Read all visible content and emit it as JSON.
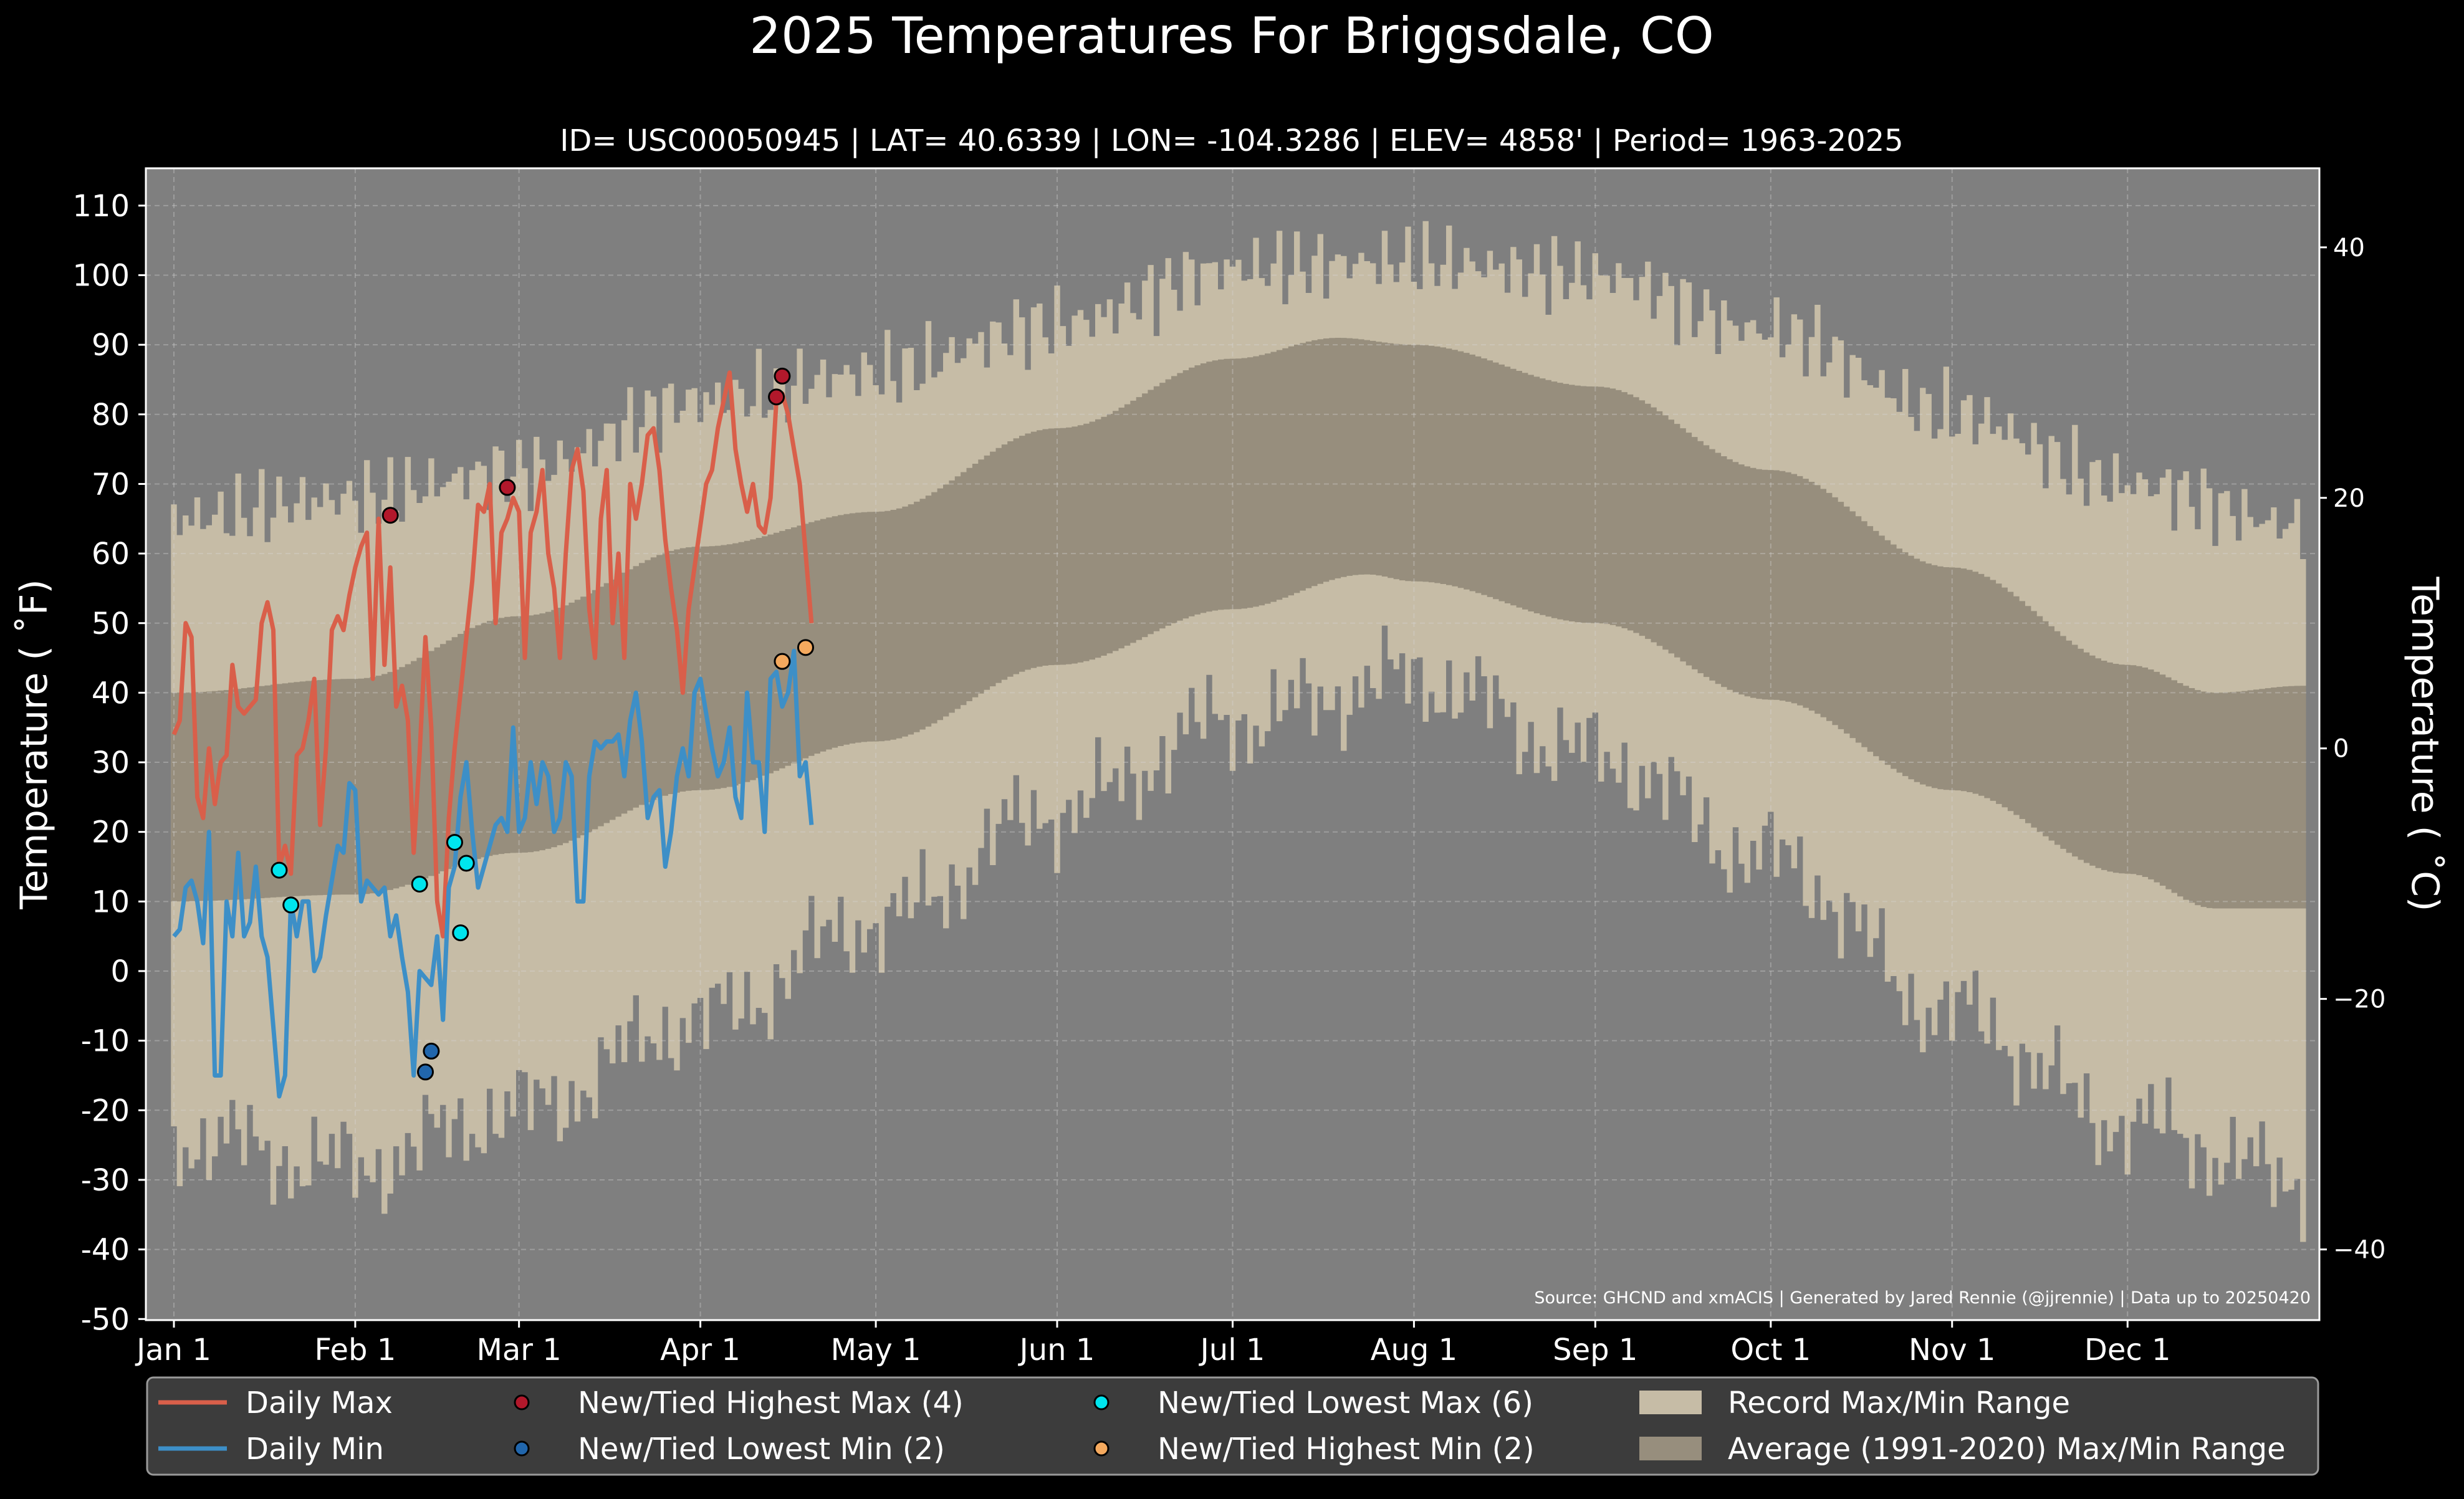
{
  "chart_data": {
    "type": "line",
    "title": "2025 Temperatures For Briggsdale, CO",
    "subtitle": "ID= USC00050945 | LAT= 40.6339 | LON= -104.3286 | ELEV= 4858' | Period= 1963-2025",
    "ylabel_left": "Temperature ( ˚F)",
    "ylabel_right": "Temperature ( ˚C)",
    "source": "Source: GHCND and xmACIS | Generated by Jared Rennie (@jjrennie) | Data up to 20250420",
    "ylim": [
      -50,
      115
    ],
    "y_ticks": [
      "110",
      "100",
      "90",
      "80",
      "70",
      "60",
      "50",
      "40",
      "30",
      "20",
      "10",
      "0",
      "-10",
      "-20",
      "-30",
      "-40",
      "-50"
    ],
    "y2_ticks": [
      "40",
      "20",
      "0",
      "−20",
      "−40"
    ],
    "x_ticks": [
      "Jan 1",
      "Feb 1",
      "Mar 1",
      "Apr 1",
      "May 1",
      "Jun 1",
      "Jul 1",
      "Aug 1",
      "Sep 1",
      "Oct 1",
      "Nov 1",
      "Dec 1"
    ],
    "grid": true,
    "legend_position": "bottom",
    "colors": {
      "background": "#000000",
      "plot_bg": "#7f7f7f",
      "record_range": "#c6bca6",
      "average_range": "#978e7d",
      "daily_max": "#d95f4a",
      "daily_min": "#3d8fc7",
      "highest_max": "#b2182b",
      "lowest_min": "#2166ac",
      "lowest_max": "#00e5ee",
      "highest_min": "#f4a95e"
    },
    "legend": [
      {
        "label": "Daily Max",
        "kind": "line",
        "color": "#d95f4a"
      },
      {
        "label": "Daily Min",
        "kind": "line",
        "color": "#3d8fc7"
      },
      {
        "label": "New/Tied Highest Max (4)",
        "kind": "dot",
        "color": "#b2182b"
      },
      {
        "label": "New/Tied Lowest Min (2)",
        "kind": "dot",
        "color": "#2166ac"
      },
      {
        "label": "New/Tied Lowest Max (6)",
        "kind": "dot",
        "color": "#00e5ee"
      },
      {
        "label": "New/Tied Highest Min (2)",
        "kind": "dot",
        "color": "#f4a95e"
      },
      {
        "label": "Record Max/Min Range",
        "kind": "patch",
        "color": "#c6bca6"
      },
      {
        "label": "Average (1991-2020) Max/Min Range",
        "kind": "patch",
        "color": "#978e7d"
      }
    ],
    "average_range": {
      "max": [
        [
          1,
          40
        ],
        [
          32,
          42
        ],
        [
          60,
          51
        ],
        [
          91,
          61
        ],
        [
          121,
          66
        ],
        [
          152,
          78
        ],
        [
          182,
          88
        ],
        [
          200,
          91
        ],
        [
          213,
          90
        ],
        [
          244,
          84
        ],
        [
          274,
          72
        ],
        [
          305,
          58
        ],
        [
          335,
          44
        ],
        [
          350,
          40
        ],
        [
          365,
          41
        ]
      ],
      "min": [
        [
          1,
          10
        ],
        [
          32,
          11
        ],
        [
          60,
          17
        ],
        [
          91,
          26
        ],
        [
          121,
          33
        ],
        [
          152,
          44
        ],
        [
          182,
          52
        ],
        [
          205,
          57
        ],
        [
          213,
          56
        ],
        [
          244,
          50
        ],
        [
          274,
          39
        ],
        [
          305,
          26
        ],
        [
          335,
          14
        ],
        [
          350,
          9
        ],
        [
          365,
          9
        ]
      ]
    },
    "record_range": {
      "max": [
        [
          1,
          65
        ],
        [
          32,
          68
        ],
        [
          60,
          72
        ],
        [
          91,
          82
        ],
        [
          121,
          86
        ],
        [
          152,
          93
        ],
        [
          182,
          101
        ],
        [
          213,
          102
        ],
        [
          244,
          100
        ],
        [
          274,
          92
        ],
        [
          305,
          80
        ],
        [
          335,
          70
        ],
        [
          365,
          64
        ]
      ],
      "min": [
        [
          1,
          -24
        ],
        [
          32,
          -28
        ],
        [
          60,
          -20
        ],
        [
          91,
          -7
        ],
        [
          121,
          7
        ],
        [
          152,
          23
        ],
        [
          182,
          36
        ],
        [
          213,
          42
        ],
        [
          244,
          31
        ],
        [
          274,
          16
        ],
        [
          305,
          -6
        ],
        [
          335,
          -22
        ],
        [
          365,
          -30
        ]
      ]
    },
    "series": [
      {
        "name": "Daily Max",
        "x": [
          1,
          2,
          3,
          4,
          5,
          6,
          7,
          8,
          9,
          10,
          11,
          12,
          13,
          14,
          15,
          16,
          17,
          18,
          19,
          20,
          21,
          22,
          23,
          24,
          25,
          26,
          27,
          28,
          29,
          30,
          31,
          32,
          33,
          34,
          35,
          36,
          37,
          38,
          39,
          40,
          41,
          42,
          43,
          44,
          45,
          46,
          47,
          48,
          49,
          50,
          51,
          52,
          53,
          54,
          55,
          56,
          57,
          58,
          59,
          60,
          61,
          62,
          63,
          64,
          65,
          66,
          67,
          68,
          69,
          70,
          71,
          72,
          73,
          74,
          75,
          76,
          77,
          78,
          79,
          80,
          81,
          82,
          83,
          84,
          85,
          86,
          87,
          88,
          89,
          90,
          91,
          92,
          93,
          94,
          95,
          96,
          97,
          98,
          99,
          100,
          101,
          102,
          103,
          104,
          105,
          106,
          107,
          108,
          109,
          110
        ],
        "values": [
          34,
          36,
          50,
          48,
          25,
          22,
          32,
          24,
          30,
          31,
          44,
          38,
          37,
          38,
          39,
          50,
          53,
          49,
          15,
          18,
          14,
          31,
          32,
          36,
          42,
          21,
          32,
          49,
          51,
          49,
          54,
          58,
          61,
          63,
          42,
          65,
          44,
          58,
          38,
          41,
          36,
          17,
          31,
          48,
          35,
          10,
          5,
          22,
          32,
          40,
          48,
          56,
          67,
          66,
          70,
          50,
          63,
          65,
          68,
          66,
          45,
          63,
          66,
          72,
          60,
          55,
          45,
          60,
          72,
          75,
          69,
          52,
          45,
          65,
          72,
          50,
          60,
          45,
          70,
          65,
          70,
          77,
          78,
          72,
          62,
          55,
          49,
          40,
          52,
          58,
          64,
          70,
          72,
          78,
          82,
          86,
          75,
          70,
          66,
          70,
          64,
          63,
          68,
          82,
          83,
          80,
          75,
          70,
          60,
          50
        ],
        "color": "#d95f4a"
      },
      {
        "name": "Daily Min",
        "x": [
          1,
          2,
          3,
          4,
          5,
          6,
          7,
          8,
          9,
          10,
          11,
          12,
          13,
          14,
          15,
          16,
          17,
          18,
          19,
          20,
          21,
          22,
          23,
          24,
          25,
          26,
          27,
          28,
          29,
          30,
          31,
          32,
          33,
          34,
          35,
          36,
          37,
          38,
          39,
          40,
          41,
          42,
          43,
          44,
          45,
          46,
          47,
          48,
          49,
          50,
          51,
          52,
          53,
          54,
          55,
          56,
          57,
          58,
          59,
          60,
          61,
          62,
          63,
          64,
          65,
          66,
          67,
          68,
          69,
          70,
          71,
          72,
          73,
          74,
          75,
          76,
          77,
          78,
          79,
          80,
          81,
          82,
          83,
          84,
          85,
          86,
          87,
          88,
          89,
          90,
          91,
          92,
          93,
          94,
          95,
          96,
          97,
          98,
          99,
          100,
          101,
          102,
          103,
          104,
          105,
          106,
          107,
          108,
          109,
          110
        ],
        "values": [
          5,
          6,
          12,
          13,
          10,
          4,
          20,
          -15,
          -15,
          10,
          5,
          17,
          5,
          7,
          15,
          5,
          2,
          -8,
          -18,
          -15,
          10,
          5,
          10,
          10,
          0,
          2,
          8,
          13,
          18,
          17,
          27,
          26,
          10,
          13,
          12,
          11,
          12,
          5,
          8,
          2,
          -3,
          -15,
          0,
          -1,
          -2,
          5,
          -7,
          12,
          15,
          25,
          30,
          20,
          12,
          15,
          18,
          21,
          22,
          20,
          35,
          20,
          22,
          30,
          24,
          30,
          28,
          20,
          22,
          30,
          28,
          10,
          10,
          28,
          33,
          32,
          33,
          33,
          34,
          28,
          36,
          40,
          33,
          22,
          25,
          26,
          15,
          20,
          28,
          32,
          28,
          40,
          42,
          37,
          32,
          28,
          30,
          35,
          25,
          22,
          40,
          30,
          30,
          20,
          42,
          43,
          38,
          40,
          46,
          28,
          30,
          21
        ],
        "color": "#3d8fc7"
      }
    ],
    "records": {
      "highest_max": [
        [
          38,
          65.5
        ],
        [
          58,
          69.5
        ],
        [
          104,
          82.5
        ],
        [
          105,
          85.5
        ]
      ],
      "lowest_min": [
        [
          44,
          -14.5
        ],
        [
          45,
          -11.5
        ]
      ],
      "lowest_max": [
        [
          19,
          14.5
        ],
        [
          21,
          9.5
        ],
        [
          43,
          12.5
        ],
        [
          49,
          18.5
        ],
        [
          51,
          15.5
        ],
        [
          50,
          5.5
        ]
      ],
      "highest_min": [
        [
          105,
          44.5
        ],
        [
          109,
          46.5
        ]
      ]
    }
  }
}
